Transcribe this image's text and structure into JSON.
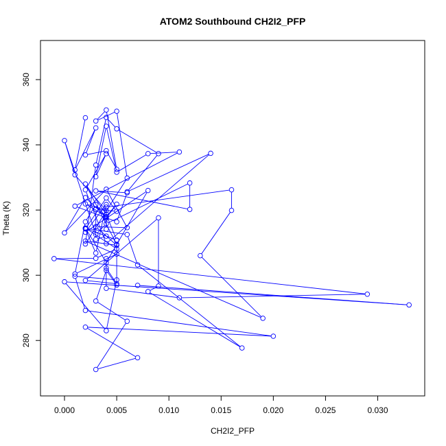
{
  "chart_data": {
    "type": "line",
    "title": "ATOM2 Southbound CH2I2_PFP",
    "xlabel": "CH2I2_PFP",
    "ylabel": "Theta (K)",
    "xlim": [
      -0.0023,
      0.0345
    ],
    "ylim": [
      263,
      372
    ],
    "xticks": [
      0.0,
      0.005,
      0.01,
      0.015,
      0.02,
      0.025,
      0.03
    ],
    "xtick_labels": [
      "0.000",
      "0.005",
      "0.010",
      "0.015",
      "0.020",
      "0.025",
      "0.030"
    ],
    "yticks": [
      280,
      300,
      320,
      340,
      360
    ],
    "ytick_labels": [
      "280",
      "300",
      "320",
      "340",
      "360"
    ],
    "grid": false,
    "series_color": "#0000ff",
    "markers": "open-circle",
    "x": [
      0.002,
      0.001,
      0.003,
      0.002,
      0.004,
      0.005,
      0.004,
      0.003,
      0.005,
      0.006,
      0.002,
      0.003,
      0.004,
      0.005,
      0.009,
      0.006,
      0.014,
      0.004,
      0.002,
      0.004,
      0.003,
      0.004,
      0.005,
      0.008,
      0.011,
      0.001,
      0.005,
      0.006,
      0.003,
      0.012,
      0.012,
      0.004,
      0.003,
      0.0,
      0.001,
      0.004,
      0.002,
      0.004,
      0.005,
      0.004,
      0.004,
      0.004,
      0.016,
      0.016,
      0.013,
      0.019,
      0.002,
      0.005,
      0.003,
      0.006,
      0.004,
      0.0,
      0.002,
      0.004,
      0.003,
      0.002,
      0.001,
      0.005,
      0.005,
      0.002,
      0.004,
      0.005,
      0.004,
      0.003,
      0.003,
      0.005,
      0.004,
      0.002,
      0.003,
      0.004,
      0.002,
      0.008,
      0.004,
      0.002,
      0.005,
      0.003,
      -0.001,
      0.029,
      0.011,
      0.004,
      0.004,
      0.004,
      0.005,
      0.002,
      0.009,
      0.009,
      0.008,
      0.017,
      0.007,
      0.006,
      0.002,
      0.005,
      0.005,
      0.004,
      0.003,
      0.006,
      0.003,
      0.007,
      0.002,
      0.02,
      0.002,
      0.001,
      0.005,
      0.004,
      0.0,
      0.033,
      0.007
    ],
    "y": [
      348.3,
      332.3,
      345.2,
      336.9,
      338.2,
      332.5,
      350.7,
      347.3,
      350.3,
      329.8,
      309.6,
      333.8,
      348.4,
      344.9,
      337.3,
      325.6,
      337.4,
      309.7,
      326.2,
      337.3,
      330.2,
      345.7,
      331.6,
      337.3,
      337.8,
      321.2,
      316.4,
      325.3,
      325.9,
      320.2,
      328.3,
      315.8,
      312.5,
      341.3,
      330.8,
      319.9,
      321.9,
      318.0,
      321.8,
      317.5,
      314.1,
      320.9,
      326.2,
      319.9,
      306.0,
      286.8,
      310.5,
      309.2,
      314.9,
      314.6,
      326.4,
      313.0,
      323.8,
      317.8,
      321.7,
      316.4,
      300.4,
      306.5,
      309.5,
      328.0,
      318.7,
      310.7,
      312.0,
      311.0,
      320.2,
      319.6,
      323.7,
      314.2,
      306.8,
      321.7,
      313.2,
      326.0,
      303.9,
      314.5,
      308.1,
      305.2,
      305.1,
      294.2,
      293.1,
      296.0,
      305.1,
      302.2,
      297.4,
      298.4,
      317.6,
      296.7,
      295.0,
      277.7,
      303.2,
      312.5,
      314.4,
      310.8,
      297.0,
      301.5,
      292.1,
      285.9,
      271.1,
      274.7,
      284.1,
      281.3,
      289.2,
      299.7,
      298.6,
      283.0,
      298.0,
      290.9,
      296.9
    ]
  }
}
